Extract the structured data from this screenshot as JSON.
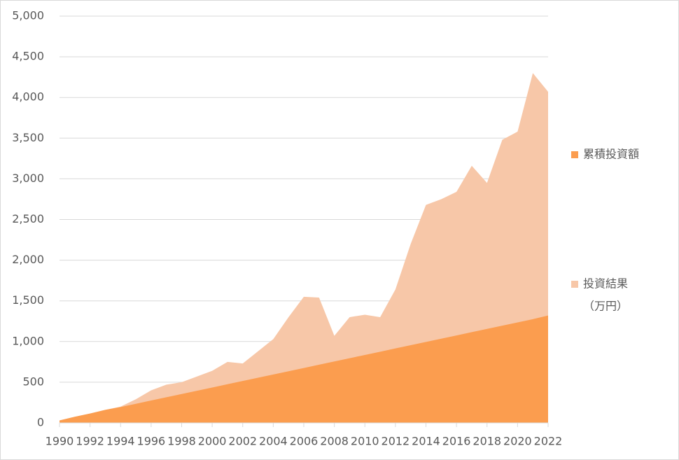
{
  "chart_data": {
    "type": "area",
    "x": [
      1990,
      1991,
      1992,
      1993,
      1994,
      1995,
      1996,
      1997,
      1998,
      1999,
      2000,
      2001,
      2002,
      2003,
      2004,
      2005,
      2006,
      2007,
      2008,
      2009,
      2010,
      2011,
      2012,
      2013,
      2014,
      2015,
      2016,
      2017,
      2018,
      2019,
      2020,
      2021,
      2022
    ],
    "series": [
      {
        "name": "累積投資額",
        "color": "#fb9d4f",
        "values": [
          30,
          75,
          115,
          160,
          195,
          235,
          275,
          315,
          355,
          395,
          435,
          475,
          515,
          555,
          595,
          635,
          675,
          715,
          755,
          795,
          835,
          875,
          915,
          955,
          995,
          1035,
          1075,
          1115,
          1155,
          1195,
          1235,
          1275,
          1320
        ]
      },
      {
        "name": "投資結果",
        "color": "#f7c7a8",
        "values": [
          30,
          75,
          115,
          160,
          200,
          290,
          400,
          470,
          500,
          570,
          640,
          750,
          730,
          880,
          1030,
          1300,
          1550,
          1540,
          1070,
          1300,
          1330,
          1300,
          1640,
          2200,
          2680,
          2750,
          2840,
          3160,
          2950,
          3480,
          3580,
          4300,
          4070
        ]
      }
    ],
    "y_unit": "（万円）",
    "xlim": [
      1990,
      2022
    ],
    "xticks": [
      1990,
      1992,
      1994,
      1996,
      1998,
      2000,
      2002,
      2004,
      2006,
      2008,
      2010,
      2012,
      2014,
      2016,
      2018,
      2020,
      2022
    ],
    "ylim": [
      0,
      5000
    ],
    "yticks": [
      0,
      500,
      {
        "value": 1000,
        "label": "1,000"
      },
      {
        "value": 1500,
        "label": "1,500"
      },
      {
        "value": 2000,
        "label": "2,000"
      },
      {
        "value": 2500,
        "label": "2,500"
      },
      {
        "value": 3000,
        "label": "3,000"
      },
      {
        "value": 3500,
        "label": "3,500"
      },
      {
        "value": 4000,
        "label": "4,000"
      },
      {
        "value": 4500,
        "label": "4,500"
      },
      {
        "value": 5000,
        "label": "5,000"
      }
    ],
    "grid": true
  }
}
